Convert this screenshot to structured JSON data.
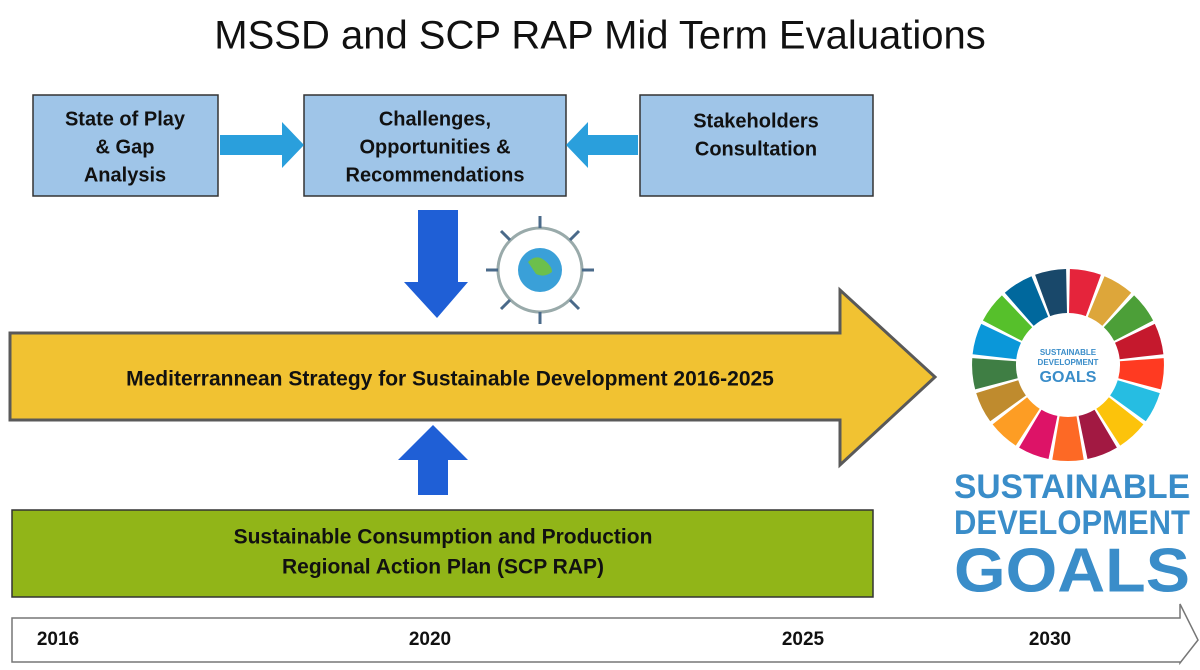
{
  "title": "MSSD and SCP RAP Mid Term Evaluations",
  "boxes": [
    {
      "lines": [
        "State of Play",
        "& Gap",
        "Analysis"
      ]
    },
    {
      "lines": [
        "Challenges,",
        "Opportunities &",
        "Recommendations"
      ]
    },
    {
      "lines": [
        "Stakeholders",
        "Consultation"
      ]
    }
  ],
  "strategy_arrow": {
    "label": "Mediterrannean Strategy for Sustainable Development 2016-2025"
  },
  "action_plan": {
    "lines": [
      "Sustainable Consumption and Production",
      "Regional Action Plan (SCP RAP)"
    ]
  },
  "timeline": {
    "years": [
      "2016",
      "2020",
      "2025",
      "2030"
    ]
  },
  "sdg_wheel": {
    "lines": [
      "SUSTAINABLE",
      "DEVELOPMENT",
      "GOALS"
    ]
  },
  "sdg_logo": {
    "lines": [
      "SUSTAINABLE",
      "DEVELOPMENT",
      "GOALS"
    ]
  }
}
